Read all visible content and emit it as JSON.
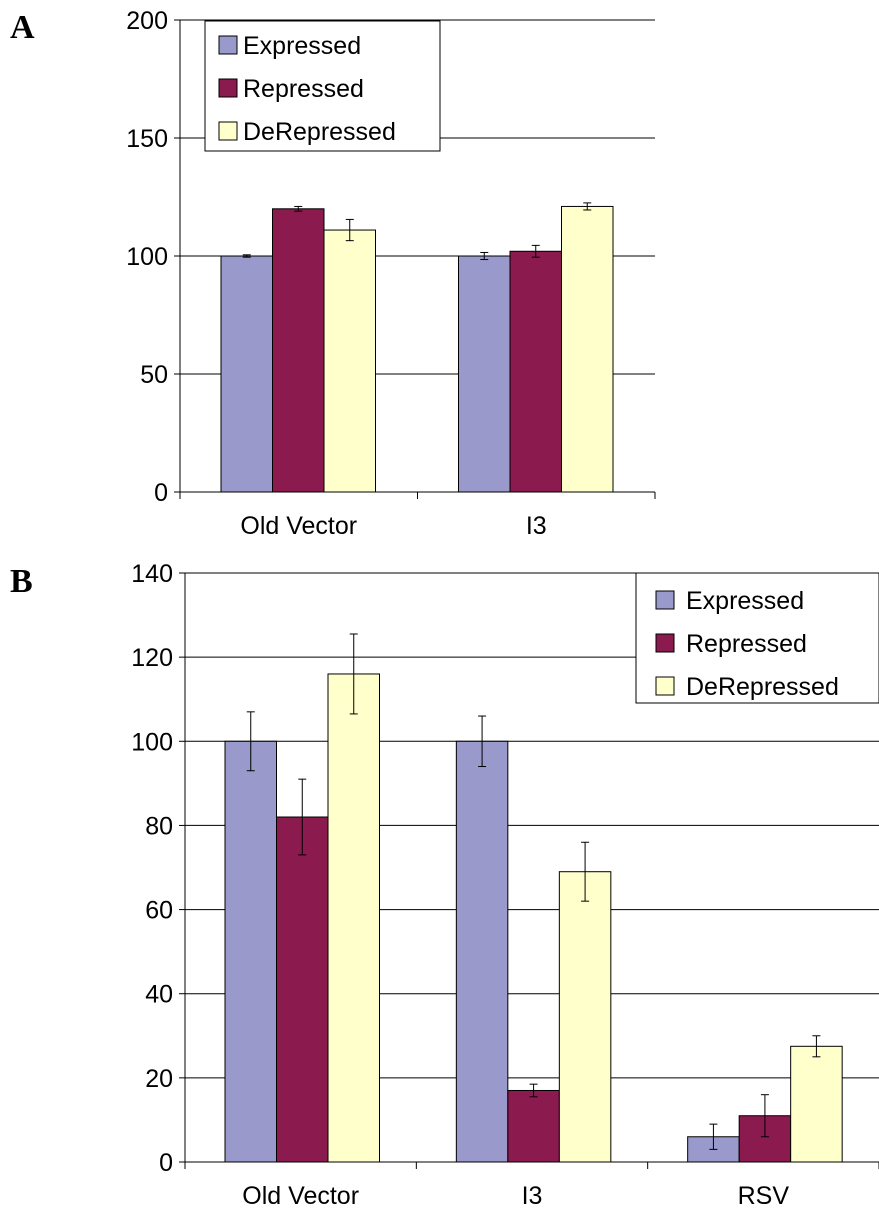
{
  "panels": [
    {
      "label": "A",
      "chart_data": {
        "type": "bar",
        "categories": [
          "Old Vector",
          "I3"
        ],
        "series": [
          {
            "name": "Expressed",
            "color": "#9999cc",
            "values": [
              100,
              100
            ],
            "errors": [
              0.5,
              1.5
            ]
          },
          {
            "name": "Repressed",
            "color": "#8b1a4f",
            "values": [
              120,
              102
            ],
            "errors": [
              1,
              2.5
            ]
          },
          {
            "name": "DeRepressed",
            "color": "#ffffcc",
            "values": [
              111,
              121
            ],
            "errors": [
              4.5,
              1.5
            ]
          }
        ],
        "ylim": [
          0,
          200
        ],
        "yticks": [
          0,
          50,
          100,
          150,
          200
        ],
        "grid": true,
        "legend_position": "top-left"
      }
    },
    {
      "label": "B",
      "chart_data": {
        "type": "bar",
        "categories": [
          "Old Vector",
          "I3",
          "RSV"
        ],
        "series": [
          {
            "name": "Expressed",
            "color": "#9999cc",
            "values": [
              100,
              100,
              6
            ],
            "errors": [
              7,
              6,
              3
            ]
          },
          {
            "name": "Repressed",
            "color": "#8b1a4f",
            "values": [
              82,
              17,
              11
            ],
            "errors": [
              9,
              1.5,
              5
            ]
          },
          {
            "name": "DeRepressed",
            "color": "#ffffcc",
            "values": [
              116,
              69,
              27.5
            ],
            "errors": [
              9.5,
              7,
              2.5
            ]
          }
        ],
        "ylim": [
          0,
          140
        ],
        "yticks": [
          0,
          20,
          40,
          60,
          80,
          100,
          120,
          140
        ],
        "grid": true,
        "legend_position": "top-right"
      }
    }
  ]
}
